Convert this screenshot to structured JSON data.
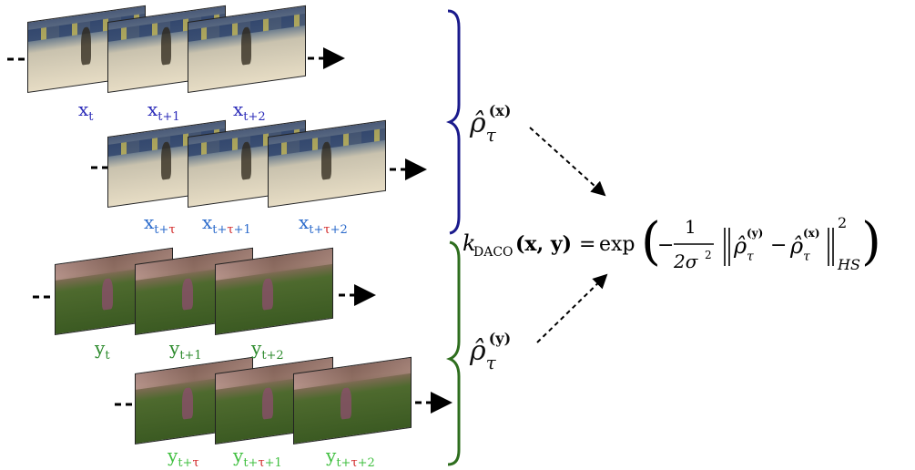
{
  "rows": [
    {
      "frames": [
        "runner",
        "runner",
        "runner"
      ],
      "labels": [
        {
          "base": "x",
          "sub": "t",
          "sub_parts": [
            {
              "t": "t"
            }
          ],
          "color": "blue"
        },
        {
          "base": "x",
          "sub": "t+1",
          "sub_parts": [
            {
              "t": "t+1"
            }
          ],
          "color": "blue"
        },
        {
          "base": "x",
          "sub": "t+2",
          "sub_parts": [
            {
              "t": "t+2"
            }
          ],
          "color": "blue"
        }
      ]
    },
    {
      "frames": [
        "runner",
        "runner",
        "runner"
      ],
      "labels": [
        {
          "base": "x",
          "sub_parts": [
            {
              "t": "t+"
            },
            {
              "t": "τ",
              "red": true
            }
          ],
          "color": "lblue"
        },
        {
          "base": "x",
          "sub_parts": [
            {
              "t": "t+"
            },
            {
              "t": "τ",
              "red": true
            },
            {
              "t": "+1"
            }
          ],
          "color": "lblue"
        },
        {
          "base": "x",
          "sub_parts": [
            {
              "t": "t+"
            },
            {
              "t": "τ",
              "red": true
            },
            {
              "t": "+2"
            }
          ],
          "color": "lblue"
        }
      ]
    },
    {
      "frames": [
        "child",
        "child",
        "child"
      ],
      "labels": [
        {
          "base": "y",
          "sub_parts": [
            {
              "t": "t"
            }
          ],
          "color": "green"
        },
        {
          "base": "y",
          "sub_parts": [
            {
              "t": "t+1"
            }
          ],
          "color": "green"
        },
        {
          "base": "y",
          "sub_parts": [
            {
              "t": "t+2"
            }
          ],
          "color": "green"
        }
      ]
    },
    {
      "frames": [
        "child",
        "child",
        "child"
      ],
      "labels": [
        {
          "base": "y",
          "sub_parts": [
            {
              "t": "t+"
            },
            {
              "t": "τ",
              "red": true
            }
          ],
          "color": "lgreen"
        },
        {
          "base": "y",
          "sub_parts": [
            {
              "t": "t+"
            },
            {
              "t": "τ",
              "red": true
            },
            {
              "t": "+1"
            }
          ],
          "color": "lgreen"
        },
        {
          "base": "y",
          "sub_parts": [
            {
              "t": "t+"
            },
            {
              "t": "τ",
              "red": true
            },
            {
              "t": "+2"
            }
          ],
          "color": "lgreen"
        }
      ]
    }
  ],
  "rho_x": {
    "hat": "ρ̂",
    "sub": "τ",
    "sup": "(x)"
  },
  "rho_y": {
    "hat": "ρ̂",
    "sub": "τ",
    "sup": "(y)"
  },
  "formula": {
    "k": "k",
    "k_sub": "DACO",
    "args": "(x, y)",
    "eq": "=",
    "exp": "exp",
    "minus": "−",
    "num": "1",
    "den": "2σ",
    "den_sup": "2",
    "inner_minus": "−",
    "norm_sup": "2",
    "norm_sub": "HS"
  },
  "colors": {
    "x_brace": "#1a1a8c",
    "y_brace": "#2e6e1e"
  }
}
